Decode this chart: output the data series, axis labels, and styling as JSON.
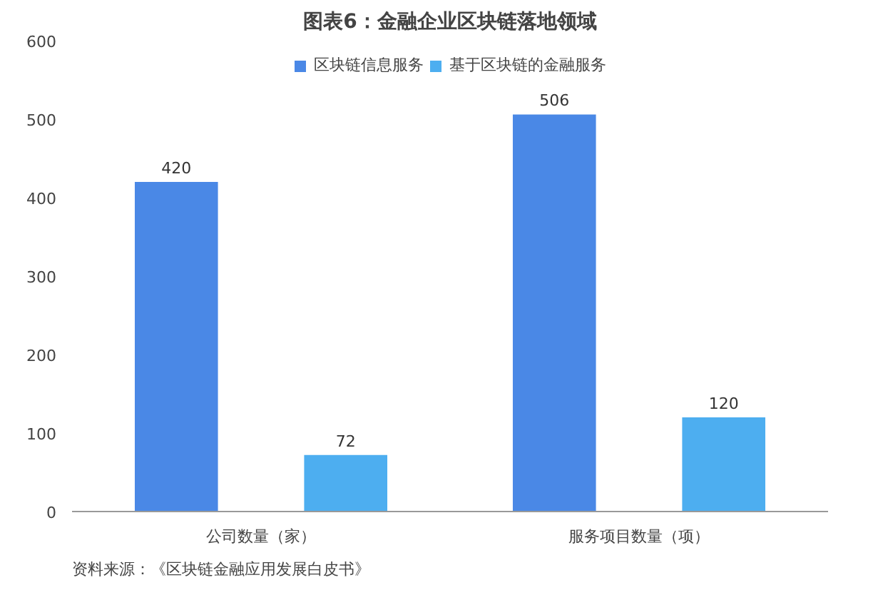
{
  "chart_data": {
    "type": "bar",
    "title": "图表6：金融企业区块链落地领域",
    "categories": [
      "公司数量（家）",
      "服务项目数量（项）"
    ],
    "series": [
      {
        "name": "区块链信息服务",
        "color": "#4a88e6",
        "values": [
          420,
          506
        ]
      },
      {
        "name": "基于区块链的金融服务",
        "color": "#4daef0",
        "values": [
          72,
          120
        ]
      }
    ],
    "ylim": [
      0,
      600
    ],
    "yticks": [
      0,
      100,
      200,
      300,
      400,
      500,
      600
    ],
    "data_labels": true,
    "legend": "top",
    "grid": false,
    "annotations": [
      "资料来源：《区块链金融应用发展白皮书》"
    ]
  }
}
